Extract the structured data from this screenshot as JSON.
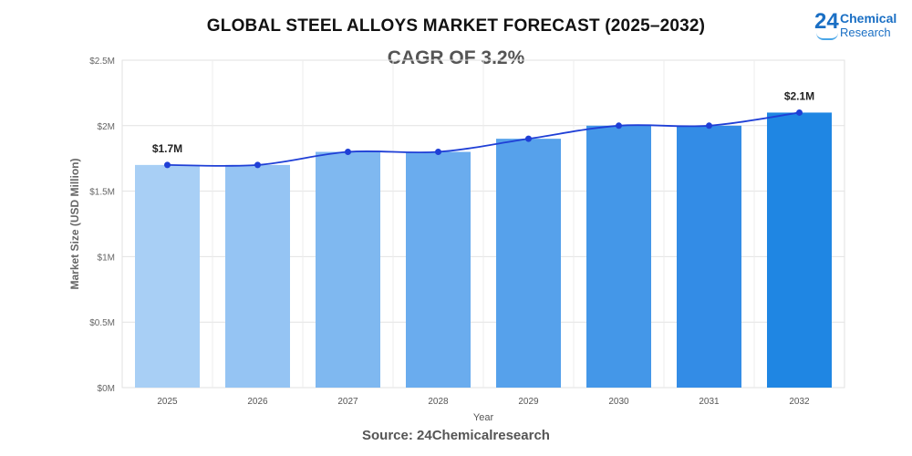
{
  "title": "GLOBAL STEEL ALLOYS MARKET FORECAST (2025–2032)",
  "subtitle": "CAGR OF 3.2%",
  "logo": {
    "number": "24",
    "line1": "Chemical",
    "line2": "Research"
  },
  "source": "Source: 24Chemicalresearch",
  "chart_data": {
    "type": "bar",
    "categories": [
      "2025",
      "2026",
      "2027",
      "2028",
      "2029",
      "2030",
      "2031",
      "2032"
    ],
    "values": [
      1.7,
      1.7,
      1.8,
      1.8,
      1.9,
      2.0,
      2.0,
      2.1
    ],
    "trend_line": [
      1.7,
      1.7,
      1.8,
      1.8,
      1.9,
      2.0,
      2.0,
      2.1
    ],
    "xlabel": "Year",
    "ylabel": "Market Size (USD Million)",
    "ylim": [
      0,
      2.5
    ],
    "yticks": [
      0,
      0.5,
      1,
      1.5,
      2,
      2.5
    ],
    "ytick_labels": [
      "$0M",
      "$0.5M",
      "$1M",
      "$1.5M",
      "$2M",
      "$2.5M"
    ],
    "data_labels": [
      {
        "index": 0,
        "text": "$1.7M"
      },
      {
        "index": 7,
        "text": "$2.1M"
      }
    ],
    "grid": true,
    "colors": {
      "bars": [
        "#a8cff5",
        "#95c4f3",
        "#7fb8f0",
        "#6aacee",
        "#56a1eb",
        "#4497e8",
        "#338ce6",
        "#1f86e3"
      ],
      "line": "#1f3fd6",
      "grid": "#e2e2e2"
    }
  }
}
